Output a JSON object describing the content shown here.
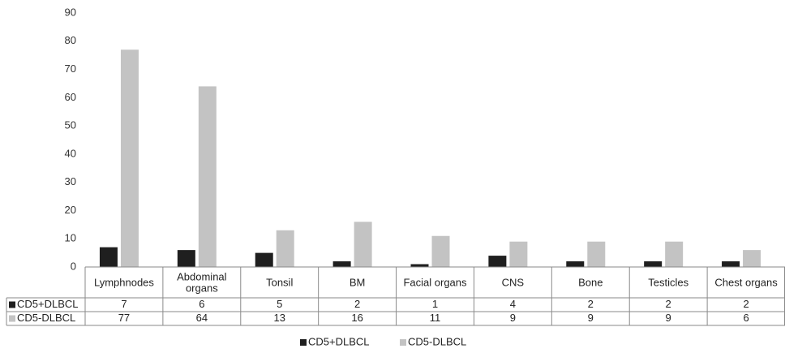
{
  "chart_data": {
    "type": "bar",
    "categories": [
      "Lymphnodes",
      "Abdominal organs",
      "Tonsil",
      "BM",
      "Facial organs",
      "CNS",
      "Bone",
      "Testicles",
      "Chest organs"
    ],
    "category_lines": [
      [
        "Lymphnodes"
      ],
      [
        "Abdominal",
        "organs"
      ],
      [
        "Tonsil"
      ],
      [
        "BM"
      ],
      [
        "Facial organs"
      ],
      [
        "CNS"
      ],
      [
        "Bone"
      ],
      [
        "Testicles"
      ],
      [
        "Chest organs"
      ]
    ],
    "series": [
      {
        "name": "CD5+DLBCL",
        "values": [
          7,
          6,
          5,
          2,
          1,
          4,
          2,
          2,
          2
        ],
        "color": "#1f1f1f"
      },
      {
        "name": "CD5-DLBCL",
        "values": [
          77,
          64,
          13,
          16,
          11,
          9,
          9,
          9,
          6
        ],
        "color": "#c3c3c3"
      }
    ],
    "yticks": [
      0,
      10,
      20,
      30,
      40,
      50,
      60,
      70,
      80,
      90
    ],
    "ylim": [
      0,
      90
    ],
    "grid": false,
    "data_table": true,
    "legend_position": "bottom-center"
  }
}
